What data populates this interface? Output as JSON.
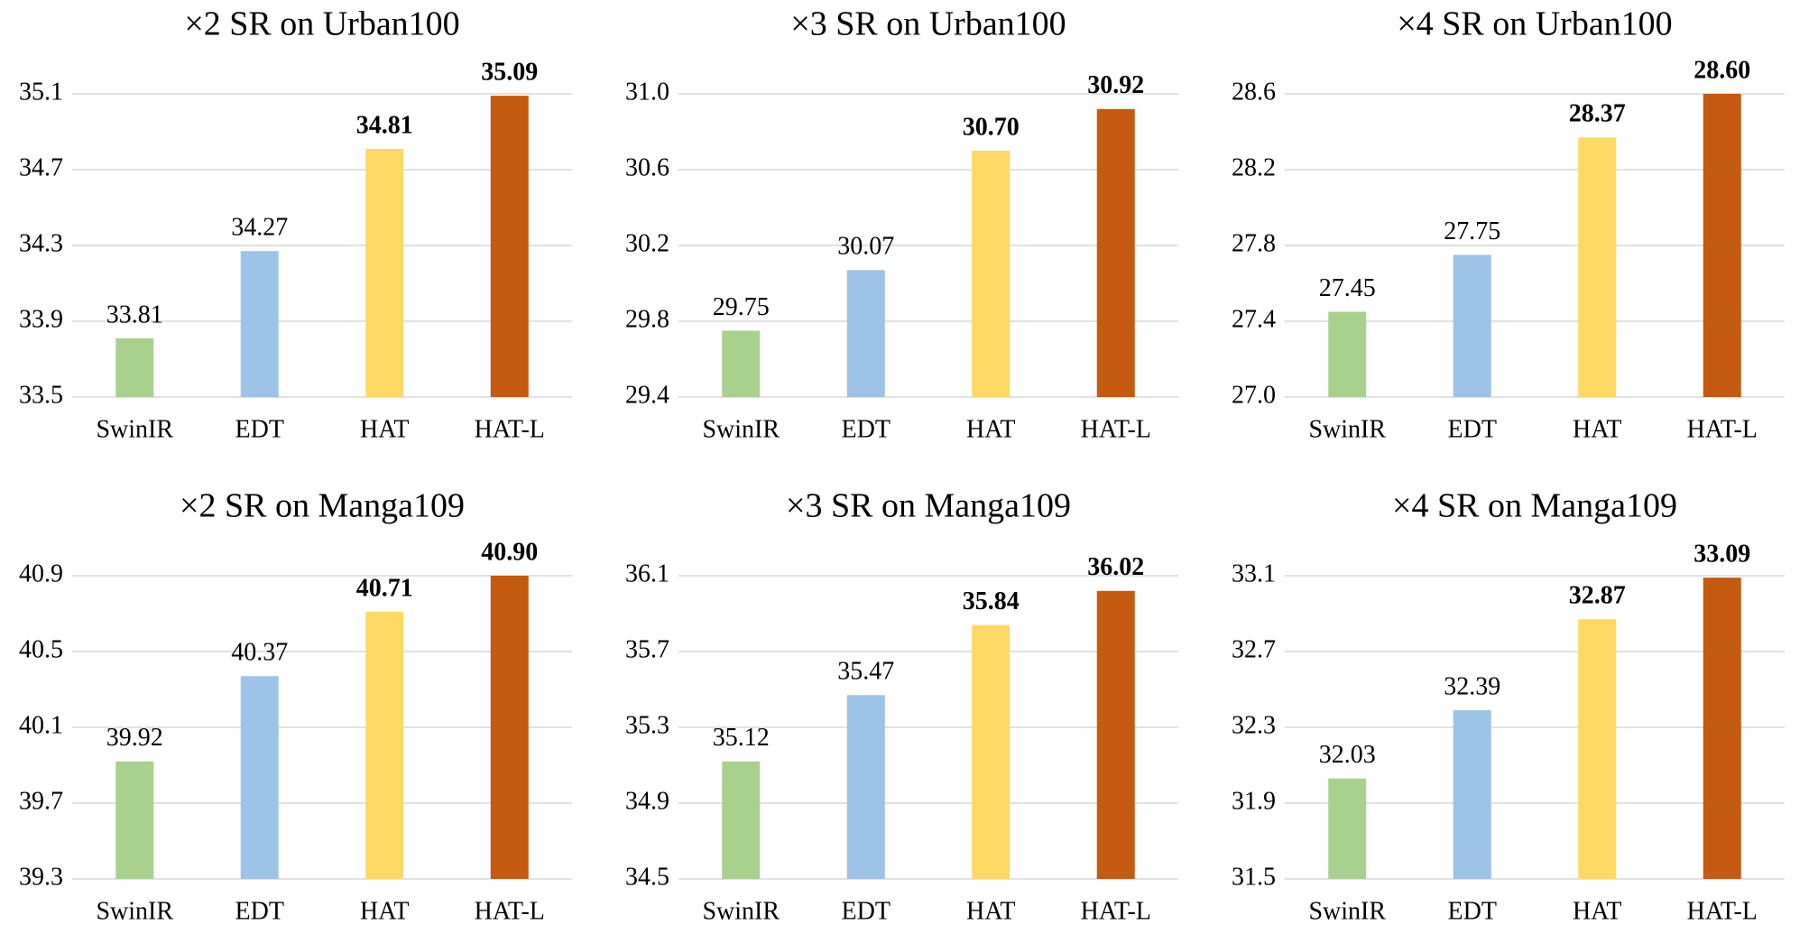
{
  "chart_data": [
    {
      "type": "bar",
      "title": "×2 SR on Urban100",
      "categories": [
        "SwinIR",
        "EDT",
        "HAT",
        "HAT-L"
      ],
      "values": [
        33.81,
        34.27,
        34.81,
        35.09
      ],
      "value_labels": [
        "33.81",
        "34.27",
        "34.81",
        "35.09"
      ],
      "colors": [
        "#a9d18e",
        "#9dc3e6",
        "#ffd966",
        "#c55a11"
      ],
      "ylim": [
        33.5,
        35.1
      ],
      "yticks": [
        33.5,
        33.9,
        34.3,
        34.7,
        35.1
      ],
      "grid": true
    },
    {
      "type": "bar",
      "title": "×3 SR on Urban100",
      "categories": [
        "SwinIR",
        "EDT",
        "HAT",
        "HAT-L"
      ],
      "values": [
        29.75,
        30.07,
        30.7,
        30.92
      ],
      "value_labels": [
        "29.75",
        "30.07",
        "30.70",
        "30.92"
      ],
      "colors": [
        "#a9d18e",
        "#9dc3e6",
        "#ffd966",
        "#c55a11"
      ],
      "ylim": [
        29.4,
        31.0
      ],
      "yticks": [
        29.4,
        29.8,
        30.2,
        30.6,
        {
          "value": 31.0,
          "label": "31.0"
        }
      ],
      "grid": true
    },
    {
      "type": "bar",
      "title": "×4 SR on Urban100",
      "categories": [
        "SwinIR",
        "EDT",
        "HAT",
        "HAT-L"
      ],
      "values": [
        27.45,
        27.75,
        28.37,
        28.6
      ],
      "value_labels": [
        "27.45",
        "27.75",
        "28.37",
        "28.60"
      ],
      "colors": [
        "#a9d18e",
        "#9dc3e6",
        "#ffd966",
        "#c55a11"
      ],
      "ylim": [
        27.0,
        28.6
      ],
      "yticks": [
        {
          "value": 27.0,
          "label": "27.0"
        },
        27.4,
        27.8,
        28.2,
        28.6
      ],
      "grid": true
    },
    {
      "type": "bar",
      "title": "×2 SR on Manga109",
      "categories": [
        "SwinIR",
        "EDT",
        "HAT",
        "HAT-L"
      ],
      "values": [
        39.92,
        40.37,
        40.71,
        40.9
      ],
      "value_labels": [
        "39.92",
        "40.37",
        "40.71",
        "40.90"
      ],
      "colors": [
        "#a9d18e",
        "#9dc3e6",
        "#ffd966",
        "#c55a11"
      ],
      "ylim": [
        39.3,
        40.9
      ],
      "yticks": [
        39.3,
        39.7,
        40.1,
        40.5,
        40.9
      ],
      "grid": true
    },
    {
      "type": "bar",
      "title": "×3 SR on Manga109",
      "categories": [
        "SwinIR",
        "EDT",
        "HAT",
        "HAT-L"
      ],
      "values": [
        35.12,
        35.47,
        35.84,
        36.02
      ],
      "value_labels": [
        "35.12",
        "35.47",
        "35.84",
        "36.02"
      ],
      "colors": [
        "#a9d18e",
        "#9dc3e6",
        "#ffd966",
        "#c55a11"
      ],
      "ylim": [
        34.5,
        36.1
      ],
      "yticks": [
        34.5,
        34.9,
        35.3,
        35.7,
        36.1
      ],
      "grid": true
    },
    {
      "type": "bar",
      "title": "×4 SR on Manga109",
      "categories": [
        "SwinIR",
        "EDT",
        "HAT",
        "HAT-L"
      ],
      "values": [
        32.03,
        32.39,
        32.87,
        33.09
      ],
      "value_labels": [
        "32.03",
        "32.39",
        "32.87",
        "33.09"
      ],
      "colors": [
        "#a9d18e",
        "#9dc3e6",
        "#ffd966",
        "#c55a11"
      ],
      "ylim": [
        31.5,
        33.1
      ],
      "yticks": [
        31.5,
        31.9,
        32.3,
        32.7,
        33.1
      ],
      "grid": true
    }
  ]
}
